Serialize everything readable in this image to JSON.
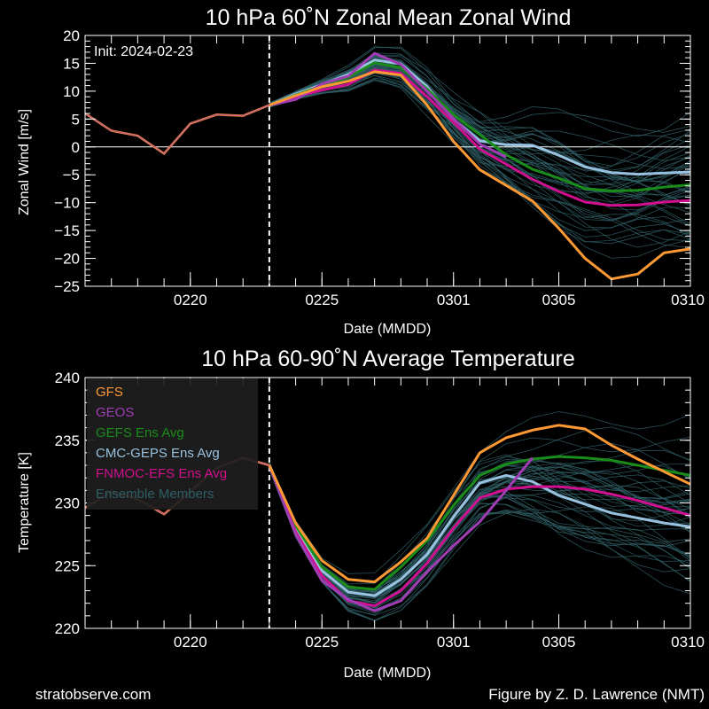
{
  "footer": {
    "left": "stratobserve.com",
    "right": "Figure by Z. D. Lawrence (NMT)"
  },
  "colors": {
    "background": "#000000",
    "foreground": "#ffffff",
    "gfs": "#ff9933",
    "geos": "#a03cb4",
    "gefs": "#1a8c1a",
    "cmc": "#99c2e0",
    "fnmoc": "#d01090",
    "members": "#2f5f66",
    "legend_box": "#1e1e1e"
  },
  "chart_data": [
    {
      "type": "line",
      "title": "10 hPa  60˚N   Zonal Mean Zonal Wind",
      "xlabel": "Date (MMDD)",
      "ylabel": "Zonal  Wind   [m/s]",
      "xlim": [
        "2024-02-16",
        "2024-03-10"
      ],
      "ylim": [
        -25,
        20
      ],
      "x_ticks": [
        {
          "date": "2024-02-20",
          "label": "0220"
        },
        {
          "date": "2024-02-25",
          "label": "0225"
        },
        {
          "date": "2024-03-01",
          "label": "0301"
        },
        {
          "date": "2024-03-05",
          "label": "0305"
        },
        {
          "date": "2024-03-10",
          "label": "0310"
        }
      ],
      "y_ticks": [
        -25,
        -20,
        -15,
        -10,
        -5,
        0,
        5,
        10,
        15,
        20
      ],
      "init_text": "Init: 2024-02-23",
      "init_date": "2024-02-23",
      "zero_line": 0,
      "grid": false,
      "obs": {
        "x": [
          "2024-02-16",
          "2024-02-17",
          "2024-02-18",
          "2024-02-19",
          "2024-02-20",
          "2024-02-21",
          "2024-02-22",
          "2024-02-23"
        ],
        "y": [
          6.0,
          2.9,
          2.0,
          -1.2,
          4.2,
          5.8,
          5.6,
          7.5
        ]
      },
      "series": [
        {
          "name": "GFS",
          "x": [
            "2024-02-23",
            "2024-02-24",
            "2024-02-25",
            "2024-02-26",
            "2024-02-27",
            "2024-02-28",
            "2024-02-29",
            "2024-03-01",
            "2024-03-02",
            "2024-03-03",
            "2024-03-04",
            "2024-03-05",
            "2024-03-06",
            "2024-03-07",
            "2024-03-08",
            "2024-03-09",
            "2024-03-10"
          ],
          "y": [
            7.5,
            9.2,
            10.8,
            11.8,
            13.5,
            12.9,
            7.5,
            1.0,
            -4.1,
            -6.9,
            -9.7,
            -14.6,
            -20.0,
            -23.7,
            -22.8,
            -19.0,
            -18.3
          ]
        },
        {
          "name": "GEOS",
          "x": [
            "2024-02-23",
            "2024-02-24",
            "2024-02-25",
            "2024-02-26",
            "2024-02-27",
            "2024-02-28",
            "2024-02-29",
            "2024-03-01",
            "2024-03-02",
            "2024-03-03"
          ],
          "y": [
            7.5,
            8.5,
            11.3,
            12.7,
            16.8,
            14.8,
            10.0,
            5.1,
            0.5,
            -1.8
          ]
        },
        {
          "name": "GEFS Ens Avg",
          "x": [
            "2024-02-23",
            "2024-02-24",
            "2024-02-25",
            "2024-02-26",
            "2024-02-27",
            "2024-02-28",
            "2024-02-29",
            "2024-03-01",
            "2024-03-02",
            "2024-03-03",
            "2024-03-04",
            "2024-03-05",
            "2024-03-06",
            "2024-03-07",
            "2024-03-08",
            "2024-03-09",
            "2024-03-10"
          ],
          "y": [
            7.5,
            9.3,
            11.0,
            12.5,
            15.1,
            14.2,
            10.4,
            5.8,
            2.2,
            -1.4,
            -4.0,
            -5.6,
            -7.5,
            -7.9,
            -7.8,
            -7.2,
            -6.8
          ]
        },
        {
          "name": "CMC-GEPS Ens Avg",
          "x": [
            "2024-02-23",
            "2024-02-24",
            "2024-02-25",
            "2024-02-26",
            "2024-02-27",
            "2024-02-28",
            "2024-02-29",
            "2024-03-01",
            "2024-03-02",
            "2024-03-03",
            "2024-03-04",
            "2024-03-05",
            "2024-03-06",
            "2024-03-07",
            "2024-03-08",
            "2024-03-09",
            "2024-03-10"
          ],
          "y": [
            7.5,
            9.5,
            11.2,
            13.0,
            15.6,
            14.9,
            10.8,
            5.0,
            1.1,
            0.4,
            0.3,
            -1.5,
            -3.6,
            -4.6,
            -4.9,
            -4.7,
            -4.5
          ]
        },
        {
          "name": "FNMOC-EFS Ens Avg",
          "x": [
            "2024-02-23",
            "2024-02-24",
            "2024-02-25",
            "2024-02-26",
            "2024-02-27",
            "2024-02-28",
            "2024-02-29",
            "2024-03-01",
            "2024-03-02",
            "2024-03-03",
            "2024-03-04",
            "2024-03-05",
            "2024-03-06",
            "2024-03-07",
            "2024-03-08",
            "2024-03-09",
            "2024-03-10"
          ],
          "y": [
            7.5,
            9.0,
            10.2,
            11.2,
            13.8,
            13.2,
            9.0,
            4.4,
            -0.4,
            -3.1,
            -5.8,
            -8.0,
            -9.9,
            -10.5,
            -10.4,
            -9.9,
            -9.6
          ]
        }
      ]
    },
    {
      "type": "line",
      "title": "10 hPa  60-90˚N Average Temperature",
      "xlabel": "Date (MMDD)",
      "ylabel": "Temperature  [K]",
      "xlim": [
        "2024-02-16",
        "2024-03-10"
      ],
      "ylim": [
        220,
        240
      ],
      "x_ticks": [
        {
          "date": "2024-02-20",
          "label": "0220"
        },
        {
          "date": "2024-02-25",
          "label": "0225"
        },
        {
          "date": "2024-03-01",
          "label": "0301"
        },
        {
          "date": "2024-03-05",
          "label": "0305"
        },
        {
          "date": "2024-03-10",
          "label": "0310"
        }
      ],
      "y_ticks": [
        220,
        225,
        230,
        235,
        240
      ],
      "init_date": "2024-02-23",
      "grid": false,
      "legend": {
        "location": "upper-left",
        "entries": [
          "GFS",
          "GEOS",
          "GEFS Ens Avg",
          "CMC-GEPS Ens Avg",
          "FNMOC-EFS Ens Avg",
          "Ensemble Members"
        ]
      },
      "obs": {
        "x": [
          "2024-02-16",
          "2024-02-17",
          "2024-02-18",
          "2024-02-19",
          "2024-02-20",
          "2024-02-21",
          "2024-02-22",
          "2024-02-23"
        ],
        "y": [
          229.6,
          230.9,
          230.3,
          229.1,
          230.9,
          232.8,
          233.6,
          233.0
        ]
      },
      "series": [
        {
          "name": "GFS",
          "x": [
            "2024-02-23",
            "2024-02-24",
            "2024-02-25",
            "2024-02-26",
            "2024-02-27",
            "2024-02-28",
            "2024-02-29",
            "2024-03-01",
            "2024-03-02",
            "2024-03-03",
            "2024-03-04",
            "2024-03-05",
            "2024-03-06",
            "2024-03-07",
            "2024-03-08",
            "2024-03-09",
            "2024-03-10"
          ],
          "y": [
            233.0,
            228.4,
            225.4,
            223.9,
            223.7,
            225.3,
            227.2,
            230.6,
            234.0,
            235.2,
            235.8,
            236.2,
            235.9,
            234.6,
            233.5,
            232.5,
            231.5
          ]
        },
        {
          "name": "GEOS",
          "x": [
            "2024-02-23",
            "2024-02-24",
            "2024-02-25",
            "2024-02-26",
            "2024-02-27",
            "2024-02-28",
            "2024-02-29",
            "2024-03-01",
            "2024-03-02",
            "2024-03-03",
            "2024-03-04"
          ],
          "y": [
            233.0,
            227.5,
            223.8,
            222.3,
            221.4,
            222.2,
            224.5,
            226.6,
            228.5,
            231.0,
            233.6
          ]
        },
        {
          "name": "GEFS Ens Avg",
          "x": [
            "2024-02-23",
            "2024-02-24",
            "2024-02-25",
            "2024-02-26",
            "2024-02-27",
            "2024-02-28",
            "2024-02-29",
            "2024-03-01",
            "2024-03-02",
            "2024-03-03",
            "2024-03-04",
            "2024-03-05",
            "2024-03-06",
            "2024-03-07",
            "2024-03-08",
            "2024-03-09",
            "2024-03-10"
          ],
          "y": [
            233.0,
            228.2,
            224.9,
            223.3,
            223.1,
            224.9,
            227.0,
            229.8,
            232.2,
            233.1,
            233.5,
            233.7,
            233.6,
            233.4,
            233.0,
            232.6,
            232.2
          ]
        },
        {
          "name": "CMC-GEPS Ens Avg",
          "x": [
            "2024-02-23",
            "2024-02-24",
            "2024-02-25",
            "2024-02-26",
            "2024-02-27",
            "2024-02-28",
            "2024-02-29",
            "2024-03-01",
            "2024-03-02",
            "2024-03-03",
            "2024-03-04",
            "2024-03-05",
            "2024-03-06",
            "2024-03-07",
            "2024-03-08",
            "2024-03-09",
            "2024-03-10"
          ],
          "y": [
            233.0,
            227.9,
            224.6,
            222.9,
            222.6,
            223.9,
            225.9,
            228.9,
            231.6,
            232.2,
            231.7,
            230.6,
            229.9,
            229.2,
            228.8,
            228.4,
            228.1
          ]
        },
        {
          "name": "FNMOC-EFS Ens Avg",
          "x": [
            "2024-02-23",
            "2024-02-24",
            "2024-02-25",
            "2024-02-26",
            "2024-02-27",
            "2024-02-28",
            "2024-02-29",
            "2024-03-01",
            "2024-03-02",
            "2024-03-03",
            "2024-03-04",
            "2024-03-05",
            "2024-03-06",
            "2024-03-07",
            "2024-03-08",
            "2024-03-09",
            "2024-03-10"
          ],
          "y": [
            233.0,
            227.7,
            224.2,
            222.2,
            221.8,
            223.0,
            225.2,
            228.0,
            230.4,
            231.1,
            231.3,
            231.3,
            231.1,
            230.7,
            230.2,
            229.6,
            229.0
          ]
        }
      ]
    }
  ]
}
